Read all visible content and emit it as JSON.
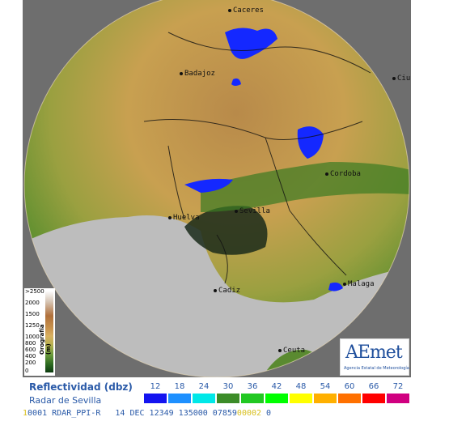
{
  "map": {
    "cities": [
      {
        "name": "Caceres"
      },
      {
        "name": "Badajoz"
      },
      {
        "name": "Ciu"
      },
      {
        "name": "Cordoba"
      },
      {
        "name": "Huelva"
      },
      {
        "name": "Sevilla"
      },
      {
        "name": "Cadiz"
      },
      {
        "name": "Malaga"
      },
      {
        "name": "Ceuta"
      }
    ]
  },
  "orography": {
    "title": "Orografía (m)",
    "levels": [
      ">2500",
      "2000",
      "1500",
      "1250",
      "1000",
      "800",
      "600",
      "400",
      "200",
      "0"
    ]
  },
  "legend": {
    "title": "Reflectividad (dbz)",
    "subtitle": "Radar de Sevilla",
    "scale": [
      {
        "value": "12",
        "color": "#1414f0"
      },
      {
        "value": "18",
        "color": "#1e90ff"
      },
      {
        "value": "24",
        "color": "#00e8e8"
      },
      {
        "value": "30",
        "color": "#3c8c28"
      },
      {
        "value": "36",
        "color": "#22c822"
      },
      {
        "value": "42",
        "color": "#00ff00"
      },
      {
        "value": "48",
        "color": "#ffff00"
      },
      {
        "value": "54",
        "color": "#ffb000"
      },
      {
        "value": "60",
        "color": "#ff7000"
      },
      {
        "value": "66",
        "color": "#ff0000"
      },
      {
        "value": "72",
        "color": "#d00080"
      }
    ]
  },
  "status_bar": {
    "prefix": "1",
    "text": "0001 RDAR_PPI-R   14 DEC 12349 135000 07859",
    "highlight": "00002",
    "suffix": " 0"
  },
  "logo": {
    "name": "AEmet",
    "subtitle": "Agencia Estatal de Meteorología"
  }
}
